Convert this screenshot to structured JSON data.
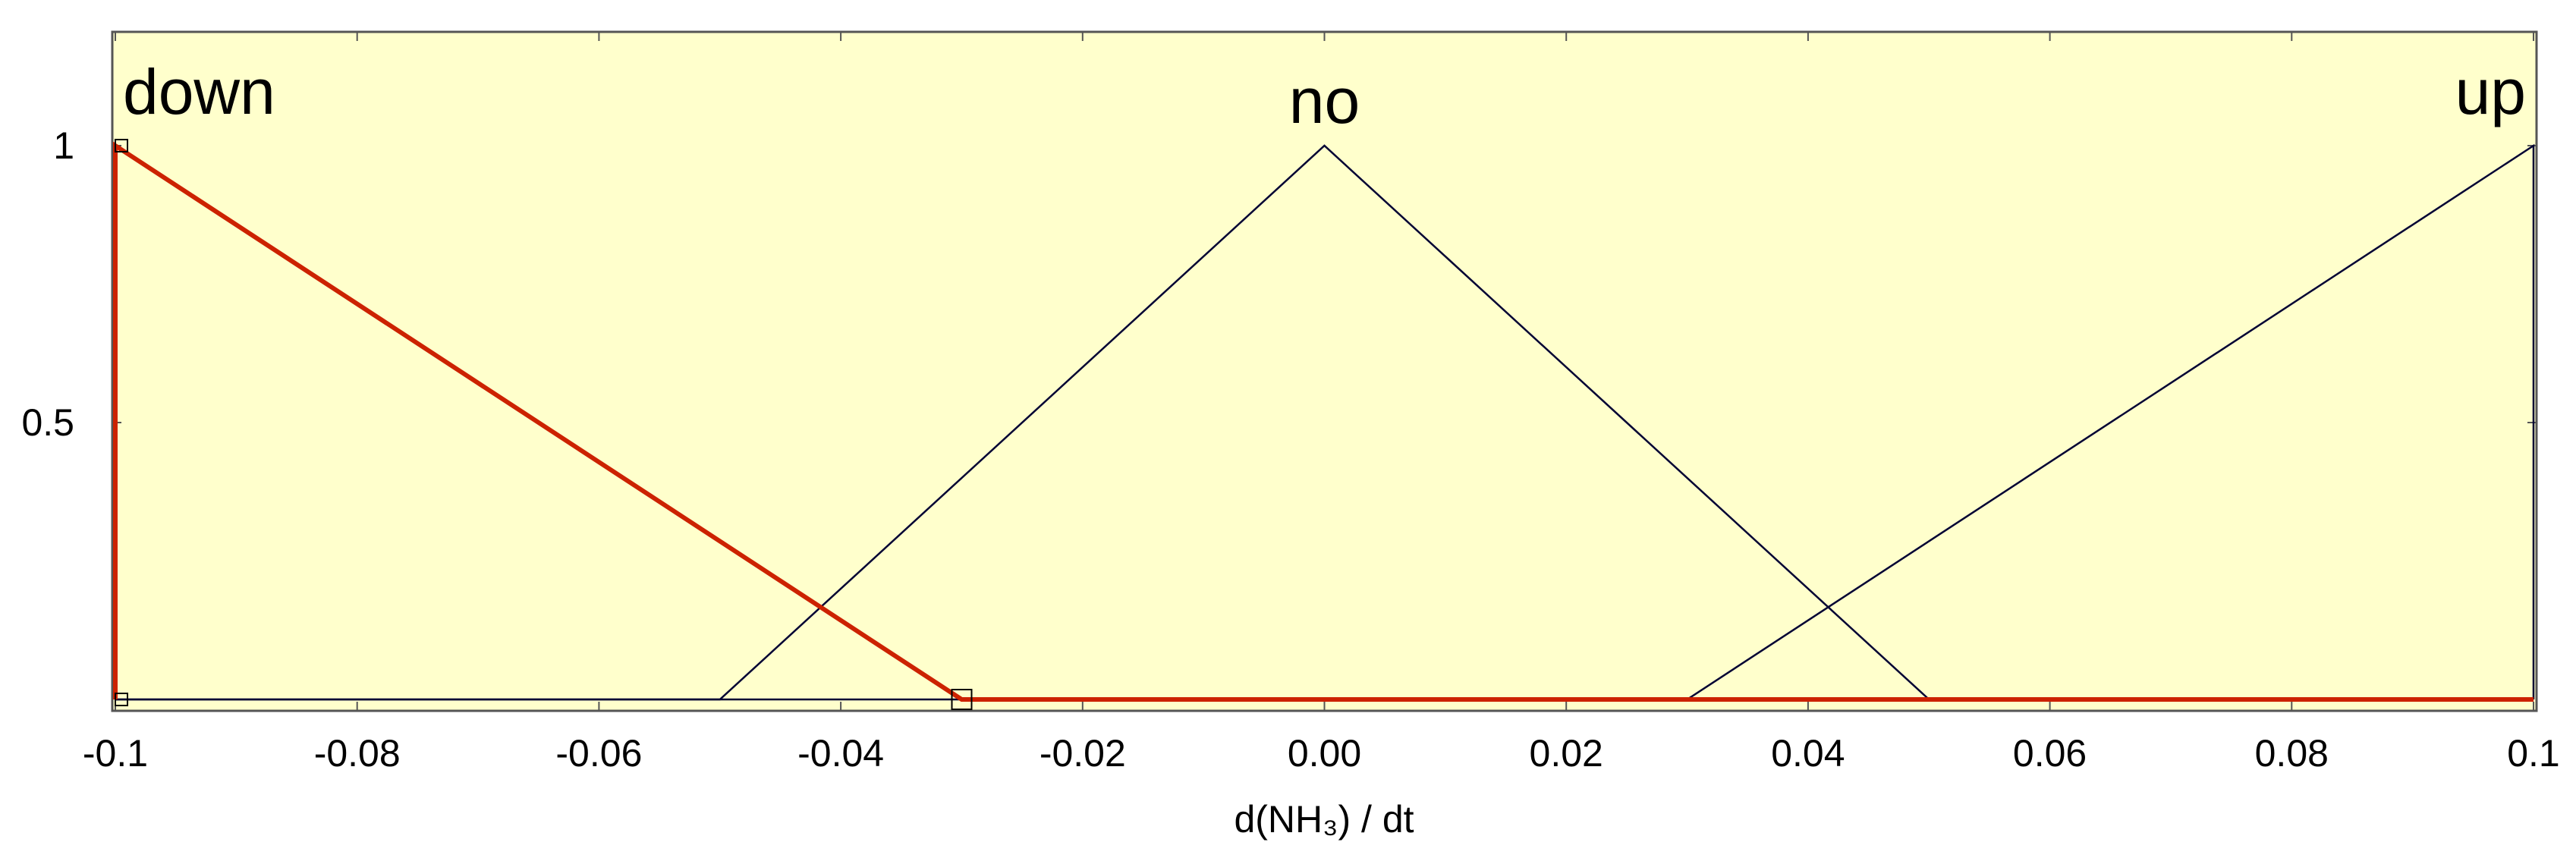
{
  "chart_data": {
    "type": "line",
    "title": "",
    "xlabel": "d(NH₃) / dt",
    "ylabel": "",
    "xlim": [
      -0.1,
      0.1
    ],
    "ylim": [
      0,
      1.2
    ],
    "x_ticks": [
      -0.1,
      -0.08,
      -0.06,
      -0.04,
      -0.02,
      0.0,
      0.02,
      0.04,
      0.06,
      0.08,
      0.1
    ],
    "x_tick_labels": [
      "-0.1",
      "-0.08",
      "-0.06",
      "-0.04",
      "-0.02",
      "0.00",
      "0.02",
      "0.04",
      "0.06",
      "0.08",
      "0.1"
    ],
    "y_ticks": [
      0.5,
      1
    ],
    "y_tick_labels": [
      "0.5",
      "1"
    ],
    "grid": false,
    "background_color": "#ffffcc",
    "series": [
      {
        "name": "down",
        "color": "#cc2200",
        "highlighted": true,
        "x": [
          -0.1,
          -0.1,
          -0.03,
          0.1
        ],
        "y": [
          0,
          1,
          0,
          0
        ],
        "handles": [
          [
            -0.1,
            1
          ],
          [
            -0.1,
            0
          ],
          [
            -0.03,
            0
          ]
        ]
      },
      {
        "name": "no",
        "color": "#000033",
        "highlighted": false,
        "x": [
          -0.1,
          -0.05,
          0.0,
          0.05,
          0.1
        ],
        "y": [
          0,
          0,
          1,
          0,
          0
        ]
      },
      {
        "name": "up",
        "color": "#000033",
        "highlighted": false,
        "x": [
          -0.1,
          0.03,
          0.1,
          0.1
        ],
        "y": [
          0,
          0,
          1,
          0
        ]
      }
    ]
  }
}
